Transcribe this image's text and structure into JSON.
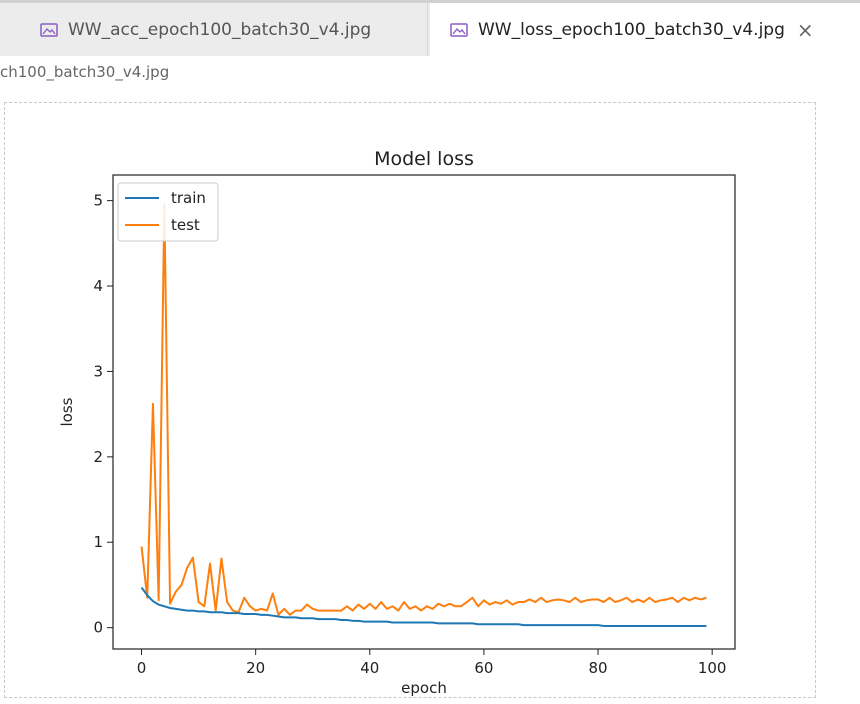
{
  "tabs": [
    {
      "label": "WW_acc_epoch100_batch30_v4.jpg",
      "active": false
    },
    {
      "label": "WW_loss_epoch100_batch30_v4.jpg",
      "active": true
    }
  ],
  "close_symbol": "×",
  "breadcrumb": "ch100_batch30_v4.jpg",
  "colors": {
    "train": "#1f77b4",
    "test": "#ff7f0e",
    "icon": "#8a5cc6"
  },
  "chart_data": {
    "type": "line",
    "title": "Model loss",
    "xlabel": "epoch",
    "ylabel": "loss",
    "xlim": [
      -5,
      104
    ],
    "ylim": [
      -0.25,
      5.3
    ],
    "xticks": [
      0,
      20,
      40,
      60,
      80,
      100
    ],
    "yticks": [
      0,
      1,
      2,
      3,
      4,
      5
    ],
    "legend": "top-left",
    "series": [
      {
        "name": "train",
        "color": "#1f77b4",
        "values": [
          0.47,
          0.38,
          0.31,
          0.27,
          0.25,
          0.23,
          0.22,
          0.21,
          0.2,
          0.2,
          0.19,
          0.19,
          0.18,
          0.18,
          0.18,
          0.17,
          0.17,
          0.17,
          0.16,
          0.16,
          0.16,
          0.15,
          0.15,
          0.14,
          0.13,
          0.12,
          0.12,
          0.12,
          0.11,
          0.11,
          0.11,
          0.1,
          0.1,
          0.1,
          0.1,
          0.09,
          0.09,
          0.08,
          0.08,
          0.07,
          0.07,
          0.07,
          0.07,
          0.07,
          0.06,
          0.06,
          0.06,
          0.06,
          0.06,
          0.06,
          0.06,
          0.06,
          0.05,
          0.05,
          0.05,
          0.05,
          0.05,
          0.05,
          0.05,
          0.04,
          0.04,
          0.04,
          0.04,
          0.04,
          0.04,
          0.04,
          0.04,
          0.03,
          0.03,
          0.03,
          0.03,
          0.03,
          0.03,
          0.03,
          0.03,
          0.03,
          0.03,
          0.03,
          0.03,
          0.03,
          0.03,
          0.02,
          0.02,
          0.02,
          0.02,
          0.02,
          0.02,
          0.02,
          0.02,
          0.02,
          0.02,
          0.02,
          0.02,
          0.02,
          0.02,
          0.02,
          0.02,
          0.02,
          0.02,
          0.02
        ]
      },
      {
        "name": "test",
        "color": "#ff7f0e",
        "values": [
          0.95,
          0.35,
          2.62,
          0.32,
          4.95,
          0.28,
          0.42,
          0.5,
          0.7,
          0.82,
          0.3,
          0.25,
          0.75,
          0.2,
          0.81,
          0.3,
          0.2,
          0.18,
          0.35,
          0.25,
          0.2,
          0.22,
          0.2,
          0.4,
          0.15,
          0.22,
          0.15,
          0.2,
          0.2,
          0.27,
          0.22,
          0.2,
          0.2,
          0.2,
          0.2,
          0.2,
          0.25,
          0.2,
          0.27,
          0.22,
          0.28,
          0.22,
          0.3,
          0.22,
          0.25,
          0.2,
          0.3,
          0.22,
          0.25,
          0.2,
          0.25,
          0.22,
          0.28,
          0.25,
          0.28,
          0.25,
          0.25,
          0.3,
          0.35,
          0.25,
          0.32,
          0.27,
          0.3,
          0.28,
          0.32,
          0.27,
          0.3,
          0.3,
          0.33,
          0.3,
          0.35,
          0.3,
          0.32,
          0.33,
          0.32,
          0.3,
          0.35,
          0.3,
          0.32,
          0.33,
          0.33,
          0.3,
          0.35,
          0.3,
          0.32,
          0.35,
          0.3,
          0.33,
          0.3,
          0.35,
          0.3,
          0.32,
          0.33,
          0.35,
          0.3,
          0.35,
          0.32,
          0.35,
          0.33,
          0.35
        ]
      }
    ]
  }
}
